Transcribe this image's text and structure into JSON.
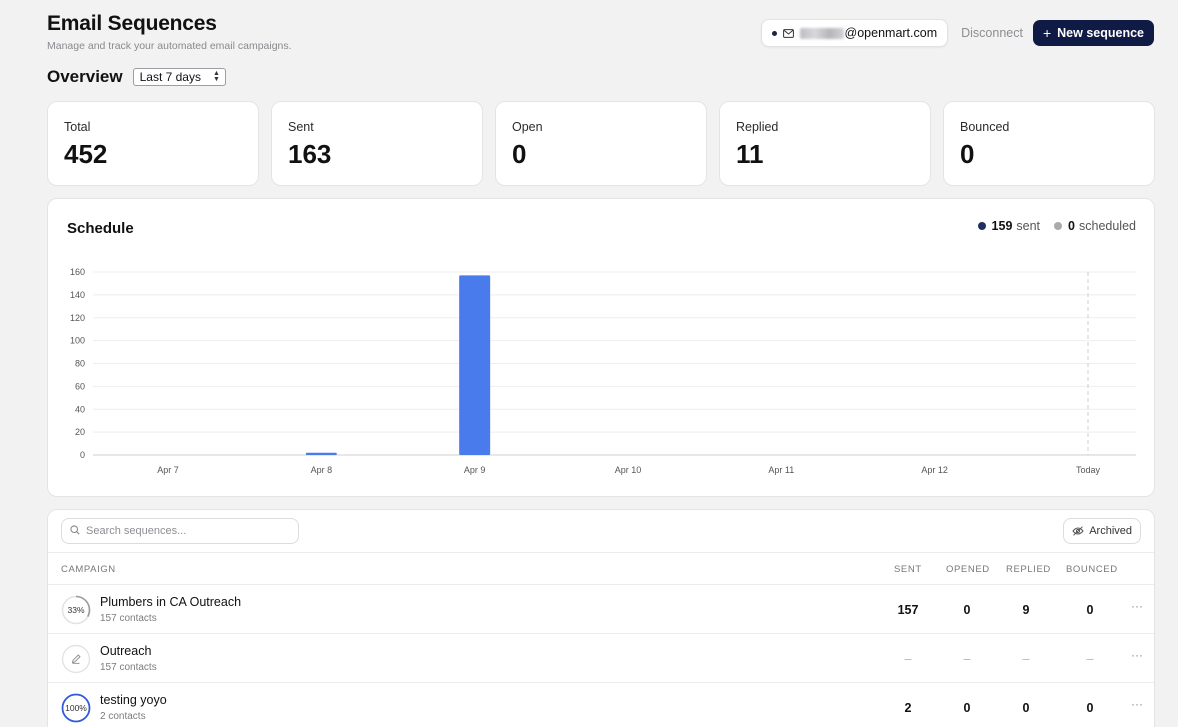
{
  "header": {
    "title": "Email Sequences",
    "subtitle": "Manage and track your automated email campaigns.",
    "account_domain": "@openmart.com",
    "disconnect_label": "Disconnect",
    "new_sequence_label": "New sequence"
  },
  "overview": {
    "title": "Overview",
    "range_selected": "Last 7 days"
  },
  "stats": [
    {
      "label": "Total",
      "value": "452"
    },
    {
      "label": "Sent",
      "value": "163"
    },
    {
      "label": "Open",
      "value": "0"
    },
    {
      "label": "Replied",
      "value": "11"
    },
    {
      "label": "Bounced",
      "value": "0"
    }
  ],
  "schedule": {
    "title": "Schedule",
    "legend": {
      "sent_count": "159",
      "sent_label": "sent",
      "scheduled_count": "0",
      "scheduled_label": "scheduled"
    }
  },
  "chart_data": {
    "type": "bar",
    "categories": [
      "Apr 7",
      "Apr 8",
      "Apr 9",
      "Apr 10",
      "Apr 11",
      "Apr 12",
      "Today"
    ],
    "series": [
      {
        "values": [
          0,
          2,
          157,
          0,
          0,
          0,
          0
        ],
        "color": "#4a7bec"
      }
    ],
    "yticks": [
      0,
      20,
      40,
      60,
      80,
      100,
      120,
      140,
      160
    ],
    "ylim": [
      0,
      160
    ],
    "grid": true,
    "today_marker": "Today",
    "title": "",
    "xlabel": "",
    "ylabel": ""
  },
  "table": {
    "search_placeholder": "Search sequences...",
    "archived_label": "Archived",
    "columns": {
      "campaign": "CAMPAIGN",
      "sent": "SENT",
      "opened": "OPENED",
      "replied": "REPLIED",
      "bounced": "BOUNCED"
    },
    "rows": [
      {
        "name": "Plumbers in CA Outreach",
        "contacts": "157 contacts",
        "progress": "33%",
        "icon": "progress-ring-icon",
        "sent": "157",
        "opened": "0",
        "replied": "9",
        "bounced": "0"
      },
      {
        "name": "Outreach",
        "contacts": "157 contacts",
        "progress": "",
        "icon": "pencil-icon",
        "sent": "–",
        "opened": "–",
        "replied": "–",
        "bounced": "–"
      },
      {
        "name": "testing yoyo",
        "contacts": "2 contacts",
        "progress": "100%",
        "icon": "progress-ring-icon",
        "sent": "2",
        "opened": "0",
        "replied": "0",
        "bounced": "0"
      }
    ],
    "more_label": "···"
  },
  "colors": {
    "primary": "#0f1b45",
    "bar": "#4a7bec",
    "progress_ring": "#2f5bdb"
  }
}
